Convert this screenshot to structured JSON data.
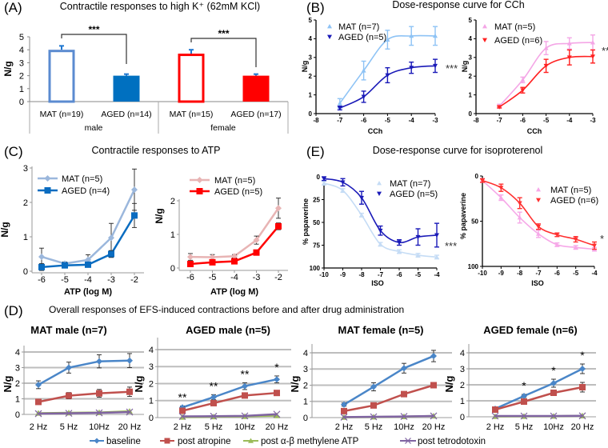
{
  "figure": {
    "A": {
      "letter": "(A)",
      "title": "Contractile responses to high K⁺ (62mM KCl)"
    },
    "B": {
      "letter": "(B)",
      "title": "Dose-response curve for CCh"
    },
    "C": {
      "letter": "(C)",
      "title": "Contractile responses to ATP"
    },
    "E": {
      "letter": "(E)",
      "title": "Dose-response curve for isoproterenol"
    },
    "D": {
      "letter": "(D)",
      "title": "Overall responses of EFS-induced contractions before and after drug administration"
    },
    "efs_legend": [
      {
        "name": "baseline",
        "color": "#4a86c8",
        "marker": "diamond"
      },
      {
        "name": "post atropine",
        "color": "#c0504d",
        "marker": "square"
      },
      {
        "name": "post α-β methylene ATP",
        "color": "#9bbb59",
        "marker": "tri-up"
      },
      {
        "name": "post tetrodotoxin",
        "color": "#8064a2",
        "marker": "x"
      }
    ]
  },
  "chart_data": [
    {
      "type": "bar",
      "ylabel": "N/g",
      "ylim": [
        0,
        5
      ],
      "yticks": [
        0,
        1,
        2,
        3,
        4,
        5
      ],
      "categories": [
        "MAT (n=19)",
        "AGED (n=14)",
        "MAT (n=15)",
        "AGED (n=17)"
      ],
      "groups": [
        "male",
        "female"
      ],
      "values": [
        4.0,
        2.0,
        3.7,
        2.0
      ],
      "errors": [
        0.3,
        0.12,
        0.3,
        0.12
      ],
      "colors": [
        "#5b8bd0",
        "#0070c0",
        "#ff0000",
        "#ff0000"
      ],
      "filled": [
        false,
        true,
        false,
        true
      ],
      "significance": [
        {
          "pair": [
            0,
            1
          ],
          "text": "***"
        },
        {
          "pair": [
            2,
            3
          ],
          "text": "***"
        }
      ]
    },
    {
      "type": "line",
      "xlabel": "CCh",
      "ylabel": "N/g",
      "xlim": [
        -8,
        -3
      ],
      "xticks": [
        -8,
        -7,
        -6,
        -5,
        -4,
        -3
      ],
      "ylim": [
        0,
        5
      ],
      "yticks": [
        0,
        1,
        2,
        3,
        4,
        5
      ],
      "significance": "***",
      "series": [
        {
          "name": "MAT (n=7)",
          "color": "#8ec3f5",
          "marker": "tri-up",
          "x": [
            -7,
            -6,
            -5,
            -4,
            -3
          ],
          "y": [
            0.55,
            2.3,
            3.95,
            4.15,
            4.15
          ],
          "err": [
            0.25,
            0.5,
            0.5,
            0.5,
            0.5
          ]
        },
        {
          "name": "AGED (n=5)",
          "color": "#1a1ab8",
          "marker": "tri-down",
          "x": [
            -7,
            -6,
            -5,
            -4,
            -3
          ],
          "y": [
            0.3,
            0.9,
            2.05,
            2.45,
            2.55
          ],
          "err": [
            0.1,
            0.3,
            0.4,
            0.3,
            0.35
          ]
        }
      ]
    },
    {
      "type": "line",
      "xlabel": "CCh",
      "ylabel": "N/g",
      "xlim": [
        -8,
        -3
      ],
      "xticks": [
        -8,
        -7,
        -6,
        -5,
        -4,
        -3
      ],
      "ylim": [
        0,
        5
      ],
      "yticks": [
        0,
        1,
        2,
        3,
        4,
        5
      ],
      "significance": "**",
      "series": [
        {
          "name": "MAT (n=5)",
          "color": "#f4a6e6",
          "marker": "tri-up",
          "x": [
            -7,
            -6,
            -5,
            -4,
            -3
          ],
          "y": [
            0.4,
            1.8,
            3.5,
            3.75,
            3.8
          ],
          "err": [
            0.1,
            0.15,
            0.35,
            0.3,
            0.4
          ]
        },
        {
          "name": "AGED (n=6)",
          "color": "#ff2020",
          "marker": "tri-down",
          "x": [
            -7,
            -6,
            -5,
            -4,
            -3
          ],
          "y": [
            0.35,
            1.25,
            2.55,
            3.0,
            3.05
          ],
          "err": [
            0.05,
            0.15,
            0.35,
            0.4,
            0.35
          ]
        }
      ]
    },
    {
      "type": "line",
      "xlabel": "ATP (log M)",
      "ylabel": "N/g",
      "xlim": [
        -6,
        -2
      ],
      "xticks": [
        -6,
        -5,
        -4,
        -3,
        -2
      ],
      "ylim": [
        0,
        3
      ],
      "yticks": [
        0,
        1,
        2,
        3
      ],
      "series": [
        {
          "name": "MAT (n=5)",
          "color": "#9bb7dc",
          "marker": "diamond",
          "x": [
            -6,
            -5,
            -4,
            -3,
            -2
          ],
          "y": [
            0.42,
            0.22,
            0.33,
            0.97,
            2.37
          ],
          "err": [
            0.25,
            0.05,
            0.15,
            0.42,
            0.6
          ]
        },
        {
          "name": "AGED (n=4)",
          "color": "#0a6cc0",
          "marker": "square",
          "x": [
            -6,
            -5,
            -4,
            -3,
            -2
          ],
          "y": [
            0.12,
            0.17,
            0.19,
            0.5,
            1.62
          ],
          "err": [
            0.1,
            0.05,
            0.05,
            0.1,
            0.35
          ]
        }
      ]
    },
    {
      "type": "line",
      "xlabel": "ATP (log M)",
      "ylabel": "N/g",
      "xlim": [
        -6,
        -2
      ],
      "xticks": [
        -6,
        -5,
        -4,
        -3,
        -2
      ],
      "ylim": [
        0,
        2
      ],
      "yticks": [
        0,
        1,
        2
      ],
      "series": [
        {
          "name": "MAT (n=5)",
          "color": "#e8b4b4",
          "marker": "diamond",
          "x": [
            -6,
            -5,
            -4,
            -3,
            -2
          ],
          "y": [
            0.33,
            0.32,
            0.35,
            0.83,
            1.78
          ],
          "err": [
            0.1,
            0.08,
            0.05,
            0.12,
            0.3
          ]
        },
        {
          "name": "AGED (n=5)",
          "color": "#ff0000",
          "marker": "square",
          "x": [
            -6,
            -5,
            -4,
            -3,
            -2
          ],
          "y": [
            0.12,
            0.17,
            0.2,
            0.46,
            1.24
          ],
          "err": [
            0.05,
            0.05,
            0.05,
            0.05,
            0.1
          ]
        }
      ]
    },
    {
      "type": "line",
      "xlabel": "ISO",
      "ylabel": "% papaverine",
      "xlim": [
        -10,
        -4
      ],
      "xticks": [
        -10,
        -9,
        -8,
        -7,
        -6,
        -5,
        -4
      ],
      "ylim": [
        0,
        100
      ],
      "yticks": [
        0,
        25,
        50,
        75,
        100
      ],
      "y_inverted": true,
      "significance": "***",
      "series": [
        {
          "name": "MAT (n=7)",
          "color": "#c5dcf5",
          "marker": "tri-up",
          "x": [
            -10,
            -9,
            -8,
            -7,
            -6,
            -5,
            -4
          ],
          "y": [
            7,
            15,
            42,
            74,
            82,
            86,
            88
          ],
          "err": [
            2,
            2,
            2,
            2,
            2,
            2,
            2
          ]
        },
        {
          "name": "AGED (n=5)",
          "color": "#1a1ab8",
          "marker": "tri-down",
          "x": [
            -10,
            -9,
            -8,
            -7,
            -6,
            -5,
            -4
          ],
          "y": [
            2,
            6,
            23,
            59,
            72,
            66,
            64
          ],
          "err": [
            2,
            4,
            7,
            5,
            3,
            9,
            13
          ]
        }
      ]
    },
    {
      "type": "line",
      "xlabel": "ISO",
      "ylabel": "% papaverine",
      "xlim": [
        -10,
        -4
      ],
      "xticks": [
        -10,
        -9,
        -8,
        -7,
        -6,
        -5,
        -4
      ],
      "ylim": [
        0,
        100
      ],
      "yticks": [
        0,
        50,
        100
      ],
      "y_inverted": true,
      "significance": "*",
      "series": [
        {
          "name": "MAT (n=5)",
          "color": "#f6a8e8",
          "marker": "tri-up",
          "x": [
            -10,
            -9,
            -8,
            -7,
            -6,
            -5,
            -4
          ],
          "y": [
            5,
            24,
            46,
            64,
            76,
            79,
            81
          ],
          "err": [
            2,
            3,
            6,
            4,
            2,
            2,
            2
          ]
        },
        {
          "name": "AGED (n=6)",
          "color": "#ff3030",
          "marker": "tri-down",
          "x": [
            -10,
            -9,
            -8,
            -7,
            -6,
            -5,
            -4
          ],
          "y": [
            5,
            13,
            30,
            56,
            65,
            70,
            77
          ],
          "err": [
            2,
            4,
            6,
            3,
            2,
            3,
            4
          ]
        }
      ]
    },
    {
      "type": "line",
      "title": "MAT male (n=7)",
      "ylabel": "N/g",
      "categories": [
        "2 Hz",
        "5 Hz",
        "10Hz",
        "20 Hz"
      ],
      "ylim": [
        0,
        4
      ],
      "yticks": [
        0,
        1,
        2,
        3,
        4
      ],
      "grid": true,
      "significance": [
        "",
        "",
        "",
        ""
      ],
      "series": [
        {
          "color": "#4a86c8",
          "marker": "diamond",
          "y": [
            1.9,
            3.0,
            3.4,
            3.45
          ],
          "err": [
            0.25,
            0.35,
            0.42,
            0.45
          ]
        },
        {
          "color": "#c0504d",
          "marker": "square",
          "y": [
            0.8,
            1.2,
            1.35,
            1.45
          ],
          "err": [
            0.1,
            0.2,
            0.25,
            0.3
          ]
        },
        {
          "color": "#9bbb59",
          "marker": "tri-up",
          "y": [
            0.08,
            0.1,
            0.12,
            0.2
          ],
          "err": [
            0,
            0,
            0,
            0
          ]
        },
        {
          "color": "#8064a2",
          "marker": "x",
          "y": [
            0.05,
            0.07,
            0.1,
            0.15
          ],
          "err": [
            0,
            0,
            0,
            0
          ]
        }
      ]
    },
    {
      "type": "line",
      "title": "AGED male (n=5)",
      "ylabel": "N/g",
      "categories": [
        "2 Hz",
        "5 Hz",
        "10Hz",
        "20 Hz"
      ],
      "ylim": [
        0,
        4
      ],
      "yticks": [
        0,
        1,
        2,
        3,
        4
      ],
      "grid": true,
      "significance": [
        "**",
        "**",
        "**",
        "*"
      ],
      "series": [
        {
          "color": "#4a86c8",
          "marker": "diamond",
          "y": [
            0.6,
            1.2,
            1.85,
            2.25
          ],
          "err": [
            0.08,
            0.15,
            0.2,
            0.2
          ]
        },
        {
          "color": "#c0504d",
          "marker": "square",
          "y": [
            0.4,
            0.85,
            1.3,
            1.45
          ],
          "err": [
            0.05,
            0.1,
            0.1,
            0.1
          ]
        },
        {
          "color": "#9bbb59",
          "marker": "tri-up",
          "y": [
            0.03,
            0.05,
            0.07,
            0.12
          ],
          "err": [
            0,
            0,
            0,
            0
          ]
        },
        {
          "color": "#8064a2",
          "marker": "x",
          "y": [
            0.07,
            0.08,
            0.1,
            0.2
          ],
          "err": [
            0,
            0,
            0,
            0
          ]
        }
      ]
    },
    {
      "type": "line",
      "title": "MAT female (n=5)",
      "ylabel": "N/g",
      "categories": [
        "2 Hz",
        "5 Hz",
        "10Hz",
        "20 Hz"
      ],
      "ylim": [
        0,
        4
      ],
      "yticks": [
        0,
        1,
        2,
        3,
        4
      ],
      "grid": true,
      "significance": [
        "",
        "",
        "",
        ""
      ],
      "series": [
        {
          "color": "#4a86c8",
          "marker": "diamond",
          "y": [
            0.8,
            1.9,
            3.05,
            3.8
          ],
          "err": [
            0.1,
            0.25,
            0.3,
            0.35
          ]
        },
        {
          "color": "#c0504d",
          "marker": "square",
          "y": [
            0.4,
            0.75,
            1.45,
            2.0
          ],
          "err": [
            0.05,
            0.1,
            0.15,
            0.15
          ]
        },
        {
          "color": "#9bbb59",
          "marker": "tri-up",
          "y": [
            0.02,
            0.04,
            0.06,
            0.1
          ],
          "err": [
            0,
            0,
            0,
            0
          ]
        },
        {
          "color": "#8064a2",
          "marker": "x",
          "y": [
            0.03,
            0.05,
            0.07,
            0.1
          ],
          "err": [
            0,
            0,
            0,
            0
          ]
        }
      ]
    },
    {
      "type": "line",
      "title": "AGED female (n=6)",
      "ylabel": "N/g",
      "categories": [
        "2 Hz",
        "5 Hz",
        "10Hz",
        "20 Hz"
      ],
      "ylim": [
        0,
        4
      ],
      "yticks": [
        0,
        1,
        2,
        3,
        4
      ],
      "grid": true,
      "significance": [
        "",
        "*",
        "*",
        "*"
      ],
      "series": [
        {
          "color": "#4a86c8",
          "marker": "diamond",
          "y": [
            0.5,
            1.3,
            2.1,
            3.0
          ],
          "err": [
            0.05,
            0.1,
            0.25,
            0.3
          ]
        },
        {
          "color": "#c0504d",
          "marker": "square",
          "y": [
            0.45,
            0.95,
            1.5,
            1.85
          ],
          "err": [
            0.05,
            0.1,
            0.15,
            0.3
          ]
        },
        {
          "color": "#9bbb59",
          "marker": "tri-up",
          "y": [
            0.02,
            0.03,
            0.04,
            0.06
          ],
          "err": [
            0,
            0,
            0,
            0
          ]
        },
        {
          "color": "#8064a2",
          "marker": "x",
          "y": [
            0.05,
            0.05,
            0.05,
            0.06
          ],
          "err": [
            0,
            0,
            0,
            0
          ]
        }
      ]
    }
  ]
}
